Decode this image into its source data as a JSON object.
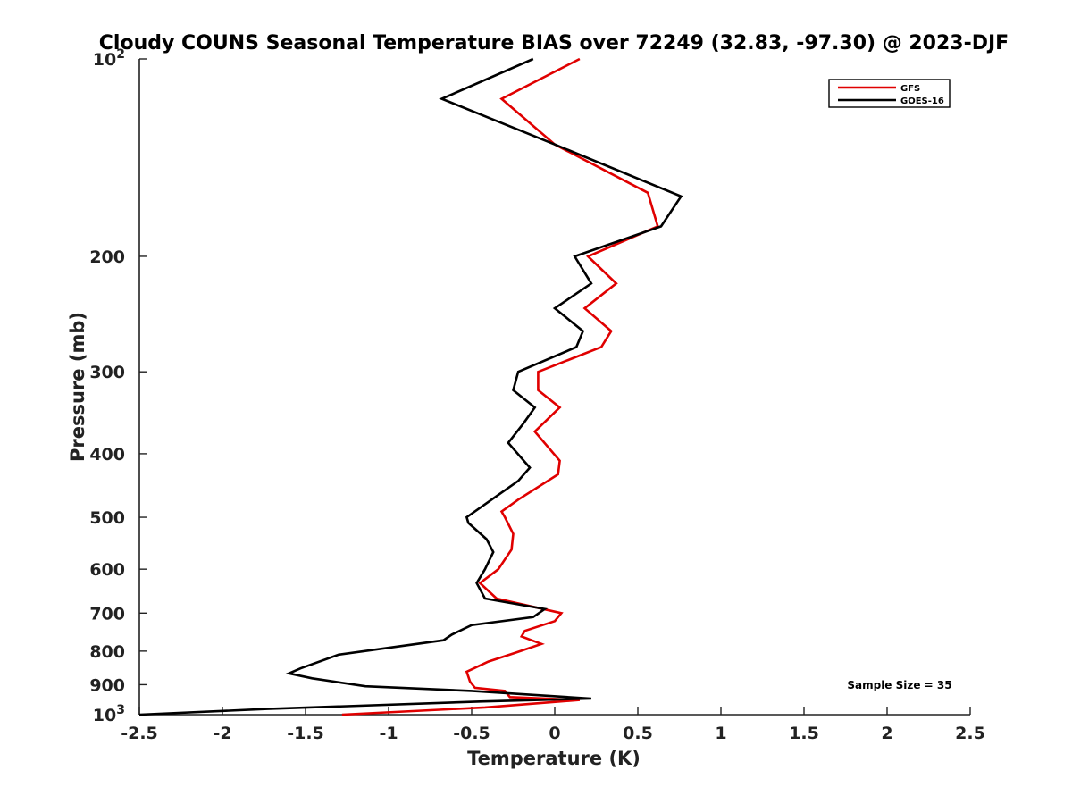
{
  "chart_data": {
    "type": "line",
    "title": "Cloudy COUNS Seasonal Temperature BIAS over 72249 (32.83, -97.30) @ 2023-DJF",
    "xlabel": "Temperature (K)",
    "ylabel": "Pressure (mb)",
    "xlim": [
      -2.5,
      2.5
    ],
    "ylim": [
      100,
      1000
    ],
    "y_scale": "log",
    "y_reversed": true,
    "x_ticks": [
      "-2.5",
      "-2",
      "-1.5",
      "-1",
      "-0.5",
      "0",
      "0.5",
      "1",
      "1.5",
      "2",
      "2.5"
    ],
    "x_tick_values": [
      -2.5,
      -2,
      -1.5,
      -1,
      -0.5,
      0,
      0.5,
      1,
      1.5,
      2,
      2.5
    ],
    "y_ticks": [
      {
        "value": 100,
        "base": "10",
        "exp": "2"
      },
      {
        "value": 200,
        "label": "200"
      },
      {
        "value": 300,
        "label": "300"
      },
      {
        "value": 400,
        "label": "400"
      },
      {
        "value": 500,
        "label": "500"
      },
      {
        "value": 600,
        "label": "600"
      },
      {
        "value": 700,
        "label": "700"
      },
      {
        "value": 800,
        "label": "800"
      },
      {
        "value": 900,
        "label": "900"
      },
      {
        "value": 1000,
        "base": "10",
        "exp": "3"
      }
    ],
    "legend_position": "top-right",
    "annotation": "Sample Size = 35",
    "series": [
      {
        "name": "GFS",
        "color": "#e00000",
        "points": [
          [
            0.15,
            100
          ],
          [
            -0.32,
            115
          ],
          [
            0.0,
            135
          ],
          [
            0.56,
            160
          ],
          [
            0.62,
            180
          ],
          [
            0.2,
            200
          ],
          [
            0.37,
            220
          ],
          [
            0.18,
            240
          ],
          [
            0.34,
            260
          ],
          [
            0.28,
            275
          ],
          [
            -0.1,
            300
          ],
          [
            -0.1,
            320
          ],
          [
            0.03,
            340
          ],
          [
            -0.12,
            370
          ],
          [
            0.03,
            410
          ],
          [
            0.02,
            430
          ],
          [
            -0.22,
            470
          ],
          [
            -0.32,
            490
          ],
          [
            -0.3,
            500
          ],
          [
            -0.25,
            530
          ],
          [
            -0.26,
            560
          ],
          [
            -0.34,
            600
          ],
          [
            -0.45,
            630
          ],
          [
            -0.35,
            665
          ],
          [
            0.04,
            700
          ],
          [
            0.0,
            720
          ],
          [
            -0.18,
            745
          ],
          [
            -0.2,
            760
          ],
          [
            -0.08,
            780
          ],
          [
            -0.24,
            805
          ],
          [
            -0.4,
            830
          ],
          [
            -0.53,
            860
          ],
          [
            -0.51,
            890
          ],
          [
            -0.48,
            910
          ],
          [
            -0.3,
            920
          ],
          [
            -0.27,
            940
          ],
          [
            0.15,
            950
          ],
          [
            -0.42,
            975
          ],
          [
            -1.28,
            1000
          ]
        ]
      },
      {
        "name": "GOES-16",
        "color": "#000000",
        "points": [
          [
            -0.13,
            100
          ],
          [
            -0.68,
            115
          ],
          [
            0.0,
            135
          ],
          [
            0.76,
            162
          ],
          [
            0.64,
            180
          ],
          [
            0.12,
            200
          ],
          [
            0.22,
            220
          ],
          [
            0.0,
            240
          ],
          [
            0.17,
            260
          ],
          [
            0.13,
            275
          ],
          [
            -0.22,
            300
          ],
          [
            -0.25,
            320
          ],
          [
            -0.12,
            340
          ],
          [
            -0.19,
            360
          ],
          [
            -0.28,
            385
          ],
          [
            -0.15,
            420
          ],
          [
            -0.22,
            440
          ],
          [
            -0.38,
            470
          ],
          [
            -0.53,
            500
          ],
          [
            -0.52,
            510
          ],
          [
            -0.41,
            540
          ],
          [
            -0.37,
            565
          ],
          [
            -0.42,
            600
          ],
          [
            -0.47,
            630
          ],
          [
            -0.42,
            665
          ],
          [
            -0.06,
            690
          ],
          [
            -0.13,
            710
          ],
          [
            -0.5,
            730
          ],
          [
            -0.62,
            755
          ],
          [
            -0.67,
            770
          ],
          [
            -1.3,
            810
          ],
          [
            -1.53,
            850
          ],
          [
            -1.6,
            865
          ],
          [
            -1.46,
            880
          ],
          [
            -1.14,
            905
          ],
          [
            -0.5,
            920
          ],
          [
            0.22,
            945
          ],
          [
            -0.45,
            955
          ],
          [
            -1.73,
            980
          ],
          [
            -2.5,
            1000
          ]
        ]
      }
    ]
  }
}
